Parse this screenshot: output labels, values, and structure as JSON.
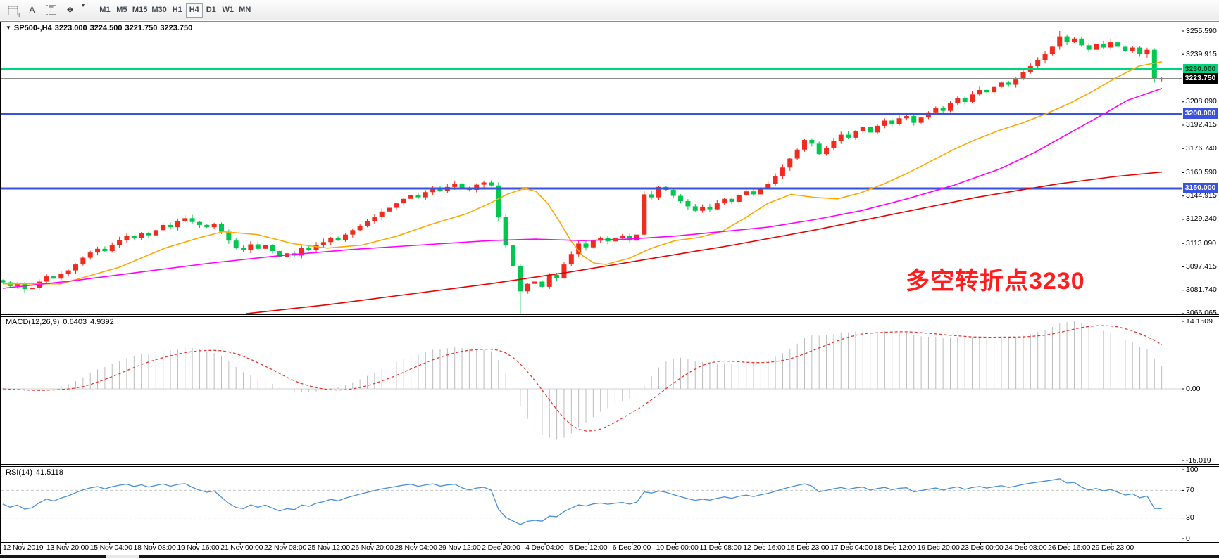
{
  "toolbar": {
    "tools": [
      {
        "name": "chart-grid-tool",
        "glyph": "F"
      },
      {
        "name": "text-label-tool",
        "glyph": "A"
      },
      {
        "name": "text-box-tool",
        "glyph": "T"
      },
      {
        "name": "arrows-tool",
        "glyph": "❖"
      }
    ],
    "dropdown_caret": "▼",
    "timeframes": [
      "M1",
      "M5",
      "M15",
      "M30",
      "H1",
      "H4",
      "D1",
      "W1",
      "MN"
    ],
    "active_timeframe": "H4"
  },
  "symbol_bar": {
    "dropdown": "▼",
    "symbol": "SP500-,H4",
    "open": "3223.000",
    "high": "3224.500",
    "low": "3221.750",
    "close": "3223.750"
  },
  "annotation": {
    "text": "多空转折点3230",
    "color": "#ff1e1e"
  },
  "price_axis": {
    "ticks": [
      3255.59,
      3239.915,
      3208.09,
      3192.415,
      3176.74,
      3160.59,
      3144.915,
      3129.24,
      3113.09,
      3097.415,
      3081.74,
      3066.065
    ],
    "badges": [
      {
        "label": "3230.000",
        "price": 3230.0,
        "bg": "#00d47c",
        "fg": "#00391d"
      },
      {
        "label": "3223.750",
        "price": 3223.75,
        "bg": "#000000",
        "fg": "#ffffff"
      },
      {
        "label": "3200.000",
        "price": 3200.0,
        "bg": "#3b52e0",
        "fg": "#ffffff"
      },
      {
        "label": "3150.000",
        "price": 3150.0,
        "bg": "#3b52e0",
        "fg": "#ffffff"
      }
    ]
  },
  "macd_panel": {
    "label": "MACD(12,26,9)",
    "main_value": "0.6403",
    "signal_value": "4.9392",
    "axis_labels": [
      "14.1509",
      "0.00",
      "-15.019"
    ]
  },
  "rsi_panel": {
    "label": "RSI(14)",
    "value": "41.5118",
    "axis_labels": [
      "100",
      "70",
      "30",
      "0"
    ]
  },
  "chart_data": {
    "type": "candlestick",
    "symbol": "SP500-",
    "timeframe": "H4",
    "quote": {
      "open": 3223.0,
      "high": 3224.5,
      "low": 3221.75,
      "close": 3223.75
    },
    "price_axis_range": [
      3066.065,
      3262.2
    ],
    "x_labels": [
      "12 Nov 2019",
      "13 Nov 20:00",
      "15 Nov 04:00",
      "18 Nov 08:00",
      "19 Nov 16:00",
      "21 Nov 00:00",
      "22 Nov 08:00",
      "25 Nov 12:00",
      "26 Nov 20:00",
      "28 Nov 04:00",
      "29 Nov 12:00",
      "2 Dec 20:00",
      "4 Dec 04:00",
      "5 Dec 12:00",
      "6 Dec 20:00",
      "10 Dec 00:00",
      "11 Dec 08:00",
      "12 Dec 16:00",
      "15 Dec 23:00",
      "17 Dec 04:00",
      "18 Dec 12:00",
      "19 Dec 20:00",
      "23 Dec 00:00",
      "24 Dec 08:00",
      "26 Dec 16:00",
      "29 Dec 23:00"
    ],
    "bull_color": "#ef2c1e",
    "bear_color": "#00c74e",
    "first_open": 3088.5,
    "closes": [
      3087,
      3084.5,
      3086,
      3082.5,
      3083.5,
      3087.5,
      3091,
      3089.5,
      3092.5,
      3095,
      3099,
      3103.5,
      3107,
      3109.5,
      3108,
      3112,
      3115.5,
      3118,
      3116.5,
      3120,
      3118.5,
      3122,
      3125.5,
      3124,
      3128,
      3130,
      3127.5,
      3125.5,
      3124,
      3126,
      3121,
      3115,
      3110,
      3108.5,
      3112.5,
      3109.5,
      3112,
      3108,
      3104,
      3106.5,
      3105,
      3110,
      3108.5,
      3112,
      3114,
      3117,
      3115.5,
      3119,
      3122,
      3125,
      3128,
      3131,
      3134.5,
      3137,
      3140,
      3143,
      3145.5,
      3144,
      3147.5,
      3150,
      3148.5,
      3151,
      3153,
      3150.5,
      3149,
      3152.5,
      3154,
      3152,
      3131,
      3112,
      3098,
      3081,
      3086,
      3087.5,
      3084,
      3092,
      3090,
      3099,
      3106,
      3113,
      3110.5,
      3115,
      3117,
      3114.5,
      3116.5,
      3118,
      3115,
      3119,
      3146,
      3144,
      3151,
      3149,
      3145,
      3141.5,
      3138,
      3135,
      3137.5,
      3136,
      3140,
      3143,
      3141,
      3145.5,
      3148,
      3146,
      3150,
      3153,
      3158,
      3164,
      3170,
      3176,
      3182.5,
      3180,
      3173,
      3177,
      3182,
      3186,
      3184,
      3188.5,
      3191,
      3187.5,
      3192,
      3195.5,
      3193,
      3197,
      3198.5,
      3194,
      3197.5,
      3201,
      3204,
      3202,
      3207,
      3210.5,
      3208,
      3213,
      3216,
      3214.5,
      3218,
      3221,
      3219.5,
      3223,
      3228,
      3232,
      3236,
      3240,
      3245,
      3252,
      3248,
      3250.5,
      3246,
      3243,
      3247,
      3244.5,
      3248,
      3245,
      3242,
      3244.5,
      3240,
      3243,
      3224,
      3223.75
    ],
    "candle_overrides": {
      "68": [
        3152,
        3154,
        3128,
        3131
      ],
      "71": [
        3098,
        3099,
        3066.1,
        3081
      ],
      "145": [
        3245,
        3255.6,
        3243,
        3252
      ],
      "158": [
        3243,
        3244,
        3221,
        3224
      ],
      "159": [
        3223,
        3224.5,
        3221.75,
        3223.75
      ]
    },
    "hlines": [
      {
        "price": 3230.0,
        "color": "#00d47c",
        "width": 3
      },
      {
        "price": 3200.0,
        "color": "#3b52e0",
        "width": 3
      },
      {
        "price": 3150.0,
        "color": "#3b52e0",
        "width": 3
      },
      {
        "price": 3223.75,
        "color": "#8a8a8a",
        "width": 1
      }
    ],
    "ma_lines": [
      {
        "name": "ma-fast-orange",
        "color": "#ffa800",
        "points": [
          [
            0,
            3086
          ],
          [
            0.05,
            3086
          ],
          [
            0.1,
            3097
          ],
          [
            0.14,
            3110
          ],
          [
            0.17,
            3117
          ],
          [
            0.19,
            3121
          ],
          [
            0.22,
            3119
          ],
          [
            0.25,
            3113
          ],
          [
            0.28,
            3110
          ],
          [
            0.31,
            3112
          ],
          [
            0.34,
            3118
          ],
          [
            0.37,
            3126
          ],
          [
            0.4,
            3133
          ],
          [
            0.42,
            3140
          ],
          [
            0.435,
            3146
          ],
          [
            0.45,
            3150
          ],
          [
            0.46,
            3148
          ],
          [
            0.47,
            3140
          ],
          [
            0.48,
            3128
          ],
          [
            0.49,
            3115
          ],
          [
            0.5,
            3105
          ],
          [
            0.51,
            3100
          ],
          [
            0.52,
            3099
          ],
          [
            0.54,
            3103
          ],
          [
            0.56,
            3110
          ],
          [
            0.58,
            3115
          ],
          [
            0.6,
            3117
          ],
          [
            0.62,
            3121
          ],
          [
            0.64,
            3130
          ],
          [
            0.66,
            3140
          ],
          [
            0.68,
            3146
          ],
          [
            0.7,
            3144
          ],
          [
            0.72,
            3143
          ],
          [
            0.74,
            3147
          ],
          [
            0.76,
            3153
          ],
          [
            0.78,
            3160
          ],
          [
            0.8,
            3168
          ],
          [
            0.82,
            3176
          ],
          [
            0.84,
            3183
          ],
          [
            0.86,
            3189
          ],
          [
            0.88,
            3194
          ],
          [
            0.9,
            3200
          ],
          [
            0.92,
            3207
          ],
          [
            0.94,
            3215
          ],
          [
            0.96,
            3224
          ],
          [
            0.98,
            3232
          ],
          [
            1.0,
            3235
          ]
        ]
      },
      {
        "name": "ma-mid-magenta",
        "color": "#ff00ff",
        "points": [
          [
            0,
            3083
          ],
          [
            0.06,
            3088
          ],
          [
            0.12,
            3094
          ],
          [
            0.18,
            3100
          ],
          [
            0.24,
            3105
          ],
          [
            0.3,
            3109
          ],
          [
            0.36,
            3112
          ],
          [
            0.42,
            3115
          ],
          [
            0.46,
            3116
          ],
          [
            0.5,
            3115
          ],
          [
            0.54,
            3116
          ],
          [
            0.58,
            3118
          ],
          [
            0.62,
            3121
          ],
          [
            0.66,
            3124
          ],
          [
            0.7,
            3129
          ],
          [
            0.74,
            3135
          ],
          [
            0.78,
            3143
          ],
          [
            0.82,
            3152
          ],
          [
            0.86,
            3163
          ],
          [
            0.89,
            3174
          ],
          [
            0.92,
            3187
          ],
          [
            0.95,
            3200
          ],
          [
            0.97,
            3209
          ],
          [
            1.0,
            3217
          ]
        ]
      },
      {
        "name": "ma-slow-red",
        "color": "#e60000",
        "points": [
          [
            0.21,
            3066
          ],
          [
            0.28,
            3072
          ],
          [
            0.35,
            3079
          ],
          [
            0.42,
            3086
          ],
          [
            0.49,
            3094
          ],
          [
            0.56,
            3103
          ],
          [
            0.63,
            3112
          ],
          [
            0.7,
            3122
          ],
          [
            0.77,
            3133
          ],
          [
            0.84,
            3144
          ],
          [
            0.91,
            3153
          ],
          [
            0.96,
            3158
          ],
          [
            1.0,
            3161
          ]
        ]
      }
    ],
    "macd": {
      "params": [
        12,
        26,
        9
      ],
      "histogram_color": "#bcbcbc",
      "signal_color": "#e53935",
      "axis_max": 14.1509,
      "axis_min": -15.019,
      "current_main": 0.6403,
      "current_signal": 4.9392
    },
    "rsi": {
      "period": 14,
      "color": "#4a90d9",
      "levels": [
        70,
        30
      ],
      "current": 41.5118
    }
  }
}
